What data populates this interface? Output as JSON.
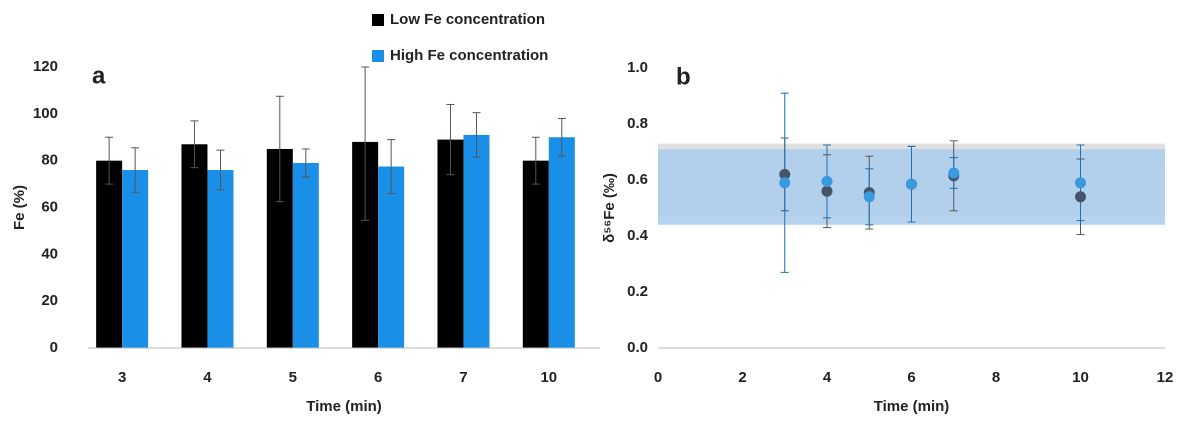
{
  "chart_data": [
    {
      "type": "bar",
      "panel_label": "a",
      "xlabel": "Time (min)",
      "ylabel": "Fe (%)",
      "categories": [
        "3",
        "4",
        "5",
        "6",
        "7",
        "10"
      ],
      "series": [
        {
          "name": "Low Fe concentration",
          "color": "#000000",
          "values": [
            80,
            87,
            85,
            88,
            89,
            80
          ],
          "errors": [
            10,
            10,
            22.5,
            33.5,
            15,
            10
          ]
        },
        {
          "name": "High Fe concentration",
          "color": "#1a8fe8",
          "values": [
            76,
            76,
            79,
            77.5,
            91,
            90
          ],
          "errors": [
            9.5,
            8.5,
            6,
            11.5,
            9.5,
            8
          ]
        }
      ],
      "ylim": [
        0,
        120
      ],
      "yticks": [
        0,
        20,
        40,
        60,
        80,
        100,
        120
      ]
    },
    {
      "type": "scatter",
      "panel_label": "b",
      "xlabel": "Time (min)",
      "ylabel": "δ⁵⁶Fe (‰)",
      "bands": [
        {
          "color": "#e0e0e0",
          "range": [
            0.47,
            0.73
          ]
        },
        {
          "color": "#a9cdec",
          "range": [
            0.44,
            0.71
          ]
        }
      ],
      "series": [
        {
          "color": "#44546a",
          "x": [
            3,
            4,
            5,
            6,
            7,
            10
          ],
          "values": [
            0.62,
            0.56,
            0.555,
            0.585,
            0.615,
            0.54
          ],
          "errors": [
            0.13,
            0.13,
            0.13,
            0.135,
            0.125,
            0.135
          ]
        },
        {
          "color": "#3a9ae0",
          "x": [
            3,
            4,
            5,
            6,
            7,
            10
          ],
          "values": [
            0.59,
            0.595,
            0.54,
            0.585,
            0.625,
            0.59
          ],
          "errors": [
            0.32,
            0.13,
            0.1,
            0.135,
            0.055,
            0.135
          ]
        }
      ],
      "xlim": [
        0,
        12
      ],
      "xticks": [
        0,
        2,
        4,
        6,
        8,
        10,
        12
      ],
      "ylim": [
        0,
        1
      ],
      "yticks": [
        {
          "value": 0,
          "label": "0.0"
        },
        0.2,
        0.4,
        0.6,
        0.8,
        {
          "value": 1,
          "label": "1.0"
        }
      ]
    }
  ]
}
